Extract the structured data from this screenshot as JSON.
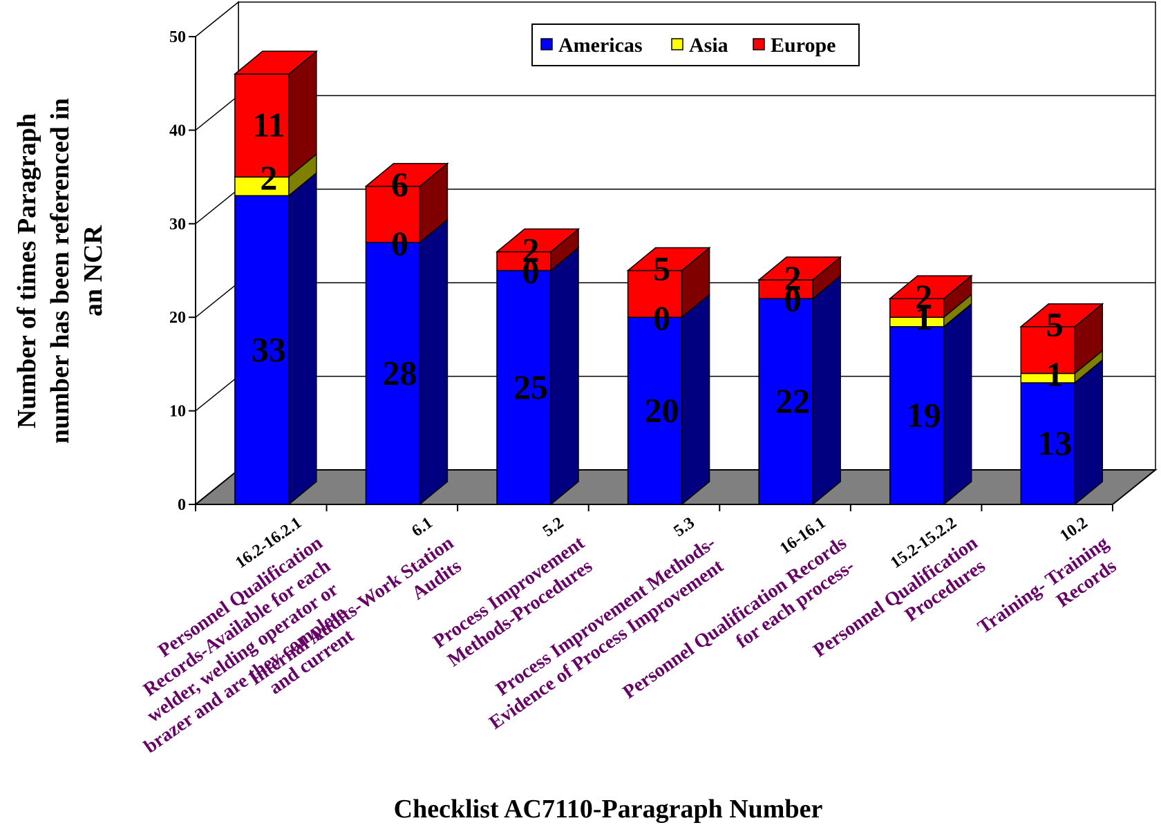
{
  "chart_data": {
    "type": "bar",
    "stacked": true,
    "three_d": true,
    "title": "",
    "xlabel": "Checklist AC7110-Paragraph Number",
    "ylabel": "Number of times Paragraph number has been referenced in an NCR",
    "ylabel_lines": [
      "Number of times Paragraph",
      "number has been referenced in",
      "an NCR"
    ],
    "ylim": [
      0,
      50
    ],
    "yticks": [
      "0",
      "10",
      "20",
      "30",
      "40",
      "50"
    ],
    "grid": true,
    "legend_position": "top-right",
    "categories": [
      {
        "code": "16.2-16.2.1",
        "desc_lines": [
          "Personnel Qualification",
          "Records-Available for each",
          "welder, welding operator or",
          "brazer and are they complete",
          "and current"
        ]
      },
      {
        "code": "6.1",
        "desc_lines": [
          "Internal Audits-Work Station",
          "Audits"
        ]
      },
      {
        "code": "5.2",
        "desc_lines": [
          "Process Improvement",
          "Methods-Procedures"
        ]
      },
      {
        "code": "5.3",
        "desc_lines": [
          "Process Improvement Methods-",
          "Evidence of Process Improvement"
        ]
      },
      {
        "code": "16-16.1",
        "desc_lines": [
          "Personnel Qualification Records",
          "for each process-"
        ]
      },
      {
        "code": "15.2-15.2.2",
        "desc_lines": [
          "Personnel Qualification",
          "Procedures"
        ]
      },
      {
        "code": "10.2",
        "desc_lines": [
          "Training- Training",
          "Records"
        ]
      }
    ],
    "series": [
      {
        "name": "Americas",
        "values": [
          33,
          28,
          25,
          20,
          22,
          19,
          13
        ],
        "color": "#0000ff",
        "side_color": "#000080"
      },
      {
        "name": "Asia",
        "values": [
          2,
          0,
          0,
          0,
          0,
          1,
          1
        ],
        "color": "#ffff00",
        "side_color": "#808000"
      },
      {
        "name": "Europe",
        "values": [
          11,
          6,
          2,
          5,
          2,
          2,
          5
        ],
        "color": "#ff0000",
        "side_color": "#800000"
      }
    ],
    "floor_color": "#808080",
    "label_color": "#660066"
  }
}
